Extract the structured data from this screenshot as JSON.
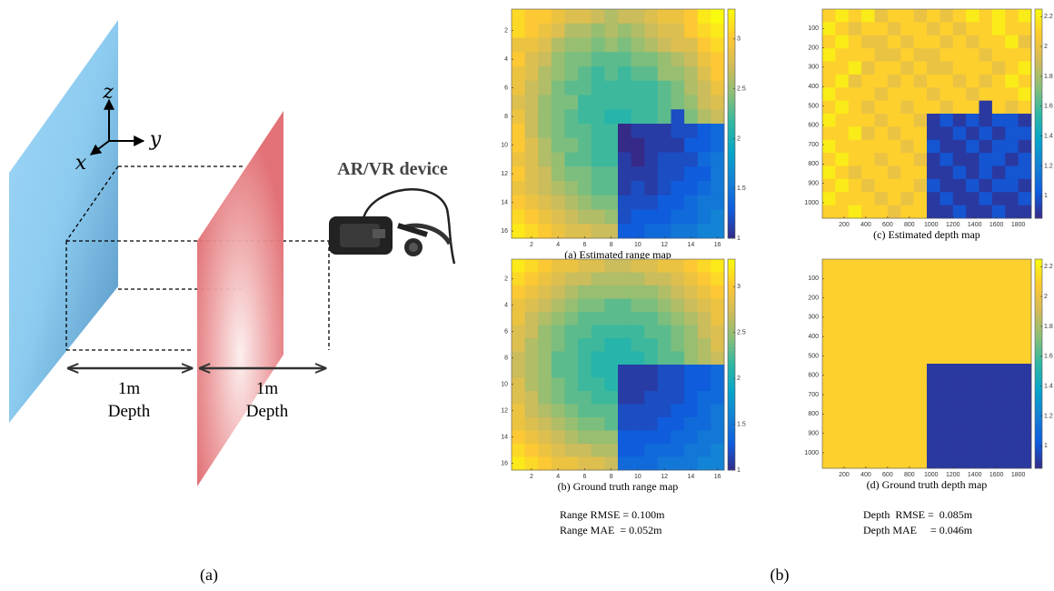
{
  "panel_a": {
    "axis_z": "z",
    "axis_y": "y",
    "axis_x": "x",
    "device": "AR/VR device",
    "gaps": [
      {
        "distance": "1m",
        "label": "Depth"
      },
      {
        "distance": "1m",
        "label": "Depth"
      }
    ],
    "label": "(a)"
  },
  "panel_b": {
    "label": "(b)",
    "metrics": [
      [
        "Range RMSE = 0.100m",
        "Range MAE  = 0.052m"
      ],
      [
        "Depth  RMSE =  0.085m",
        "Depth MAE     = 0.046m"
      ]
    ]
  },
  "chart_data": [
    {
      "type": "heatmap",
      "caption": "(a) Estimated range map",
      "xlim": [
        0.5,
        16.5
      ],
      "ylim": [
        0.5,
        16.5
      ],
      "y_reversed": true,
      "xticks": [
        2,
        4,
        6,
        8,
        10,
        12,
        14,
        16
      ],
      "yticks": [
        2,
        4,
        6,
        8,
        10,
        12,
        14,
        16
      ],
      "clim": [
        1,
        3.3
      ],
      "cticks": [
        1,
        1.5,
        2,
        2.5,
        3
      ],
      "z": [
        [
          3.1,
          3.0,
          3.0,
          2.9,
          2.8,
          2.8,
          2.7,
          2.6,
          2.7,
          2.7,
          2.8,
          2.9,
          2.9,
          3.0,
          3.2,
          3.3
        ],
        [
          3.1,
          3.0,
          2.9,
          2.8,
          2.6,
          2.6,
          2.5,
          2.6,
          2.5,
          2.6,
          2.7,
          2.8,
          2.8,
          3.0,
          3.1,
          3.2
        ],
        [
          2.9,
          2.9,
          2.8,
          2.6,
          2.5,
          2.5,
          2.4,
          2.5,
          2.4,
          2.5,
          2.6,
          2.7,
          2.8,
          2.8,
          3.0,
          3.1
        ],
        [
          3.0,
          2.8,
          2.7,
          2.5,
          2.4,
          2.4,
          2.3,
          2.3,
          2.3,
          2.4,
          2.4,
          2.5,
          2.6,
          2.7,
          2.9,
          3.0
        ],
        [
          2.9,
          2.8,
          2.6,
          2.5,
          2.4,
          2.3,
          2.2,
          2.3,
          2.2,
          2.3,
          2.3,
          2.5,
          2.5,
          2.6,
          2.8,
          3.0
        ],
        [
          2.9,
          2.7,
          2.6,
          2.4,
          2.3,
          2.3,
          2.2,
          2.2,
          2.2,
          2.2,
          2.2,
          2.3,
          2.4,
          2.6,
          2.7,
          2.9
        ],
        [
          2.8,
          2.7,
          2.5,
          2.4,
          2.4,
          2.2,
          2.2,
          2.2,
          2.2,
          2.2,
          2.2,
          2.3,
          2.4,
          2.5,
          2.7,
          2.8
        ],
        [
          2.9,
          2.7,
          2.5,
          2.4,
          2.3,
          2.2,
          2.2,
          2.1,
          2.1,
          2.2,
          2.2,
          2.3,
          1.2,
          2.4,
          2.6,
          2.7
        ],
        [
          3.0,
          2.7,
          2.5,
          2.4,
          2.3,
          2.3,
          2.2,
          2.2,
          1.0,
          1.1,
          1.1,
          1.1,
          1.2,
          1.2,
          1.3,
          1.4
        ],
        [
          3.0,
          2.8,
          2.6,
          2.4,
          2.4,
          2.3,
          2.2,
          2.2,
          1.0,
          1.0,
          1.1,
          1.1,
          1.1,
          1.3,
          1.3,
          1.4
        ],
        [
          2.9,
          2.8,
          2.6,
          2.5,
          2.3,
          2.3,
          2.2,
          2.2,
          1.1,
          1.0,
          1.1,
          1.2,
          1.2,
          1.2,
          1.4,
          1.5
        ],
        [
          3.0,
          2.8,
          2.7,
          2.5,
          2.4,
          2.4,
          2.3,
          2.3,
          1.1,
          1.1,
          1.1,
          1.2,
          1.2,
          1.3,
          1.3,
          1.5
        ],
        [
          2.9,
          2.8,
          2.7,
          2.6,
          2.5,
          2.4,
          2.3,
          2.3,
          1.1,
          1.2,
          1.1,
          1.2,
          1.3,
          1.3,
          1.4,
          1.5
        ],
        [
          3.0,
          2.9,
          2.8,
          2.7,
          2.6,
          2.5,
          2.4,
          2.4,
          1.2,
          1.2,
          1.2,
          1.3,
          1.3,
          1.4,
          1.5,
          1.5
        ],
        [
          3.1,
          3.0,
          2.9,
          2.8,
          2.7,
          2.6,
          2.6,
          2.5,
          1.2,
          1.3,
          1.3,
          1.3,
          1.4,
          1.4,
          1.5,
          1.6
        ],
        [
          3.2,
          3.1,
          3.0,
          2.9,
          2.8,
          2.8,
          2.7,
          2.7,
          1.3,
          1.3,
          1.4,
          1.4,
          1.5,
          1.5,
          1.6,
          1.6
        ]
      ]
    },
    {
      "type": "heatmap",
      "caption": "(b) Ground truth range map",
      "xlim": [
        0.5,
        16.5
      ],
      "ylim": [
        0.5,
        16.5
      ],
      "y_reversed": true,
      "xticks": [
        2,
        4,
        6,
        8,
        10,
        12,
        14,
        16
      ],
      "yticks": [
        2,
        4,
        6,
        8,
        10,
        12,
        14,
        16
      ],
      "clim": [
        1,
        3.3
      ],
      "cticks": [
        1,
        1.5,
        2,
        2.5,
        3
      ],
      "z": [
        [
          3.2,
          3.1,
          3.0,
          2.9,
          2.9,
          2.8,
          2.8,
          2.7,
          2.7,
          2.8,
          2.8,
          2.9,
          2.9,
          3.0,
          3.1,
          3.2
        ],
        [
          3.1,
          3.0,
          2.9,
          2.8,
          2.7,
          2.7,
          2.6,
          2.6,
          2.6,
          2.6,
          2.7,
          2.7,
          2.8,
          2.9,
          3.0,
          3.1
        ],
        [
          3.0,
          2.9,
          2.8,
          2.7,
          2.6,
          2.5,
          2.5,
          2.5,
          2.5,
          2.5,
          2.5,
          2.6,
          2.7,
          2.8,
          2.9,
          3.0
        ],
        [
          2.9,
          2.8,
          2.7,
          2.6,
          2.5,
          2.4,
          2.4,
          2.3,
          2.3,
          2.4,
          2.4,
          2.5,
          2.6,
          2.7,
          2.8,
          2.9
        ],
        [
          2.9,
          2.7,
          2.6,
          2.5,
          2.4,
          2.3,
          2.3,
          2.3,
          2.3,
          2.3,
          2.3,
          2.4,
          2.5,
          2.6,
          2.7,
          2.9
        ],
        [
          2.8,
          2.7,
          2.5,
          2.4,
          2.3,
          2.3,
          2.2,
          2.2,
          2.2,
          2.2,
          2.3,
          2.3,
          2.4,
          2.5,
          2.7,
          2.8
        ],
        [
          2.8,
          2.6,
          2.5,
          2.4,
          2.3,
          2.2,
          2.2,
          2.1,
          2.1,
          2.2,
          2.2,
          2.3,
          2.4,
          2.5,
          2.6,
          2.8
        ],
        [
          2.7,
          2.6,
          2.5,
          2.3,
          2.3,
          2.2,
          2.1,
          2.1,
          2.1,
          2.1,
          2.2,
          2.3,
          2.3,
          2.5,
          2.6,
          2.7
        ],
        [
          2.7,
          2.6,
          2.5,
          2.3,
          2.3,
          2.2,
          2.1,
          2.1,
          1.1,
          1.1,
          1.1,
          1.2,
          1.2,
          1.3,
          1.3,
          1.4
        ],
        [
          2.8,
          2.6,
          2.5,
          2.4,
          2.3,
          2.2,
          2.2,
          2.1,
          1.1,
          1.1,
          1.1,
          1.2,
          1.2,
          1.3,
          1.3,
          1.4
        ],
        [
          2.8,
          2.7,
          2.5,
          2.4,
          2.3,
          2.3,
          2.2,
          2.2,
          1.1,
          1.1,
          1.2,
          1.2,
          1.2,
          1.3,
          1.4,
          1.4
        ],
        [
          2.9,
          2.7,
          2.6,
          2.5,
          2.4,
          2.3,
          2.3,
          2.3,
          1.2,
          1.2,
          1.2,
          1.2,
          1.3,
          1.3,
          1.4,
          1.5
        ],
        [
          2.9,
          2.8,
          2.7,
          2.6,
          2.5,
          2.4,
          2.4,
          2.3,
          1.2,
          1.2,
          1.2,
          1.3,
          1.3,
          1.4,
          1.4,
          1.5
        ],
        [
          3.0,
          2.9,
          2.8,
          2.7,
          2.6,
          2.5,
          2.5,
          2.5,
          1.3,
          1.3,
          1.3,
          1.3,
          1.4,
          1.4,
          1.5,
          1.5
        ],
        [
          3.1,
          3.0,
          2.9,
          2.8,
          2.7,
          2.7,
          2.6,
          2.6,
          1.3,
          1.3,
          1.4,
          1.4,
          1.4,
          1.5,
          1.5,
          1.6
        ],
        [
          3.2,
          3.1,
          3.0,
          2.9,
          2.9,
          2.8,
          2.8,
          2.7,
          1.4,
          1.4,
          1.4,
          1.5,
          1.5,
          1.5,
          1.6,
          1.6
        ]
      ]
    },
    {
      "type": "heatmap",
      "caption": "(c) Estimated depth map",
      "xlim": [
        0,
        1920
      ],
      "ylim": [
        0,
        1080
      ],
      "y_reversed": true,
      "xticks": [
        200,
        400,
        600,
        800,
        1000,
        1200,
        1400,
        1600,
        1800
      ],
      "yticks": [
        100,
        200,
        300,
        400,
        500,
        600,
        700,
        800,
        900,
        1000
      ],
      "clim": [
        0.85,
        2.25
      ],
      "cticks": [
        1,
        1.2,
        1.4,
        1.6,
        1.8,
        2,
        2.2
      ],
      "z": [
        [
          2.1,
          2.2,
          2.1,
          2.2,
          2.0,
          2.1,
          2.1,
          2.0,
          2.1,
          2.0,
          2.1,
          2.2,
          2.1,
          2.2,
          2.1,
          2.2
        ],
        [
          2.2,
          2.1,
          2.0,
          2.1,
          2.1,
          2.0,
          2.1,
          2.1,
          2.0,
          2.1,
          2.0,
          2.1,
          2.1,
          2.2,
          2.1,
          2.1
        ],
        [
          2.1,
          2.2,
          2.1,
          2.0,
          2.0,
          2.1,
          2.0,
          2.1,
          2.1,
          2.0,
          2.1,
          2.0,
          2.1,
          2.1,
          2.2,
          2.0
        ],
        [
          2.2,
          2.1,
          2.1,
          2.1,
          2.0,
          2.0,
          2.1,
          2.0,
          2.0,
          2.1,
          2.1,
          2.1,
          2.0,
          2.1,
          2.1,
          2.1
        ],
        [
          2.1,
          2.1,
          2.2,
          2.0,
          2.1,
          2.1,
          2.0,
          2.1,
          2.0,
          2.0,
          2.1,
          2.1,
          2.1,
          2.0,
          2.1,
          2.2
        ],
        [
          2.1,
          2.2,
          2.0,
          2.1,
          2.1,
          2.0,
          2.1,
          2.0,
          2.1,
          2.1,
          2.0,
          2.1,
          2.0,
          2.1,
          2.2,
          2.1
        ],
        [
          2.2,
          2.1,
          2.1,
          2.1,
          2.0,
          2.1,
          2.1,
          2.1,
          2.0,
          2.1,
          2.1,
          2.0,
          2.1,
          2.1,
          2.1,
          2.2
        ],
        [
          2.1,
          2.2,
          2.1,
          2.0,
          2.1,
          2.1,
          2.0,
          2.1,
          2.1,
          2.0,
          2.1,
          2.1,
          0.9,
          2.1,
          2.0,
          2.1
        ],
        [
          2.2,
          2.1,
          2.1,
          2.1,
          2.0,
          2.1,
          2.1,
          2.0,
          0.9,
          1.0,
          0.9,
          1.0,
          0.9,
          1.0,
          1.0,
          0.9
        ],
        [
          2.1,
          2.1,
          2.2,
          2.0,
          2.1,
          2.0,
          2.1,
          2.1,
          0.9,
          0.9,
          1.0,
          0.9,
          1.0,
          0.9,
          1.0,
          1.0
        ],
        [
          2.2,
          2.1,
          2.1,
          2.1,
          2.1,
          2.1,
          2.0,
          2.1,
          1.0,
          0.9,
          0.9,
          1.0,
          0.9,
          1.0,
          1.0,
          0.9
        ],
        [
          2.1,
          2.2,
          2.1,
          2.1,
          2.0,
          2.1,
          2.1,
          2.0,
          0.9,
          1.0,
          0.9,
          0.9,
          1.0,
          1.0,
          0.9,
          1.0
        ],
        [
          2.2,
          2.1,
          2.0,
          2.1,
          2.1,
          2.0,
          2.1,
          2.1,
          0.9,
          0.9,
          1.0,
          0.9,
          1.0,
          0.9,
          1.0,
          1.0
        ],
        [
          2.1,
          2.2,
          2.1,
          2.0,
          2.1,
          2.1,
          2.1,
          2.0,
          1.0,
          0.9,
          0.9,
          1.0,
          0.9,
          1.0,
          1.0,
          0.9
        ],
        [
          2.2,
          2.1,
          2.1,
          2.1,
          2.0,
          2.1,
          2.0,
          2.1,
          0.9,
          1.0,
          0.9,
          0.9,
          1.0,
          0.9,
          0.9,
          1.0
        ],
        [
          2.1,
          2.1,
          2.2,
          2.1,
          2.1,
          2.0,
          2.1,
          2.1,
          0.9,
          0.9,
          1.0,
          0.9,
          0.9,
          1.0,
          0.9,
          0.9
        ]
      ]
    },
    {
      "type": "heatmap",
      "caption": "(d) Ground truth depth map",
      "xlim": [
        0,
        1920
      ],
      "ylim": [
        0,
        1080
      ],
      "y_reversed": true,
      "xticks": [
        200,
        400,
        600,
        800,
        1000,
        1200,
        1400,
        1600,
        1800
      ],
      "yticks": [
        100,
        200,
        300,
        400,
        500,
        600,
        700,
        800,
        900,
        1000
      ],
      "clim": [
        0.85,
        2.25
      ],
      "cticks": [
        1,
        1.2,
        1.4,
        1.6,
        1.8,
        2,
        2.2
      ],
      "z": [
        [
          2.1,
          2.1,
          2.1,
          2.1,
          2.1,
          2.1,
          2.1,
          2.1,
          2.1,
          2.1,
          2.1,
          2.1,
          2.1,
          2.1,
          2.1,
          2.1
        ],
        [
          2.1,
          2.1,
          2.1,
          2.1,
          2.1,
          2.1,
          2.1,
          2.1,
          2.1,
          2.1,
          2.1,
          2.1,
          2.1,
          2.1,
          2.1,
          2.1
        ],
        [
          2.1,
          2.1,
          2.1,
          2.1,
          2.1,
          2.1,
          2.1,
          2.1,
          2.1,
          2.1,
          2.1,
          2.1,
          2.1,
          2.1,
          2.1,
          2.1
        ],
        [
          2.1,
          2.1,
          2.1,
          2.1,
          2.1,
          2.1,
          2.1,
          2.1,
          2.1,
          2.1,
          2.1,
          2.1,
          2.1,
          2.1,
          2.1,
          2.1
        ],
        [
          2.1,
          2.1,
          2.1,
          2.1,
          2.1,
          2.1,
          2.1,
          2.1,
          2.1,
          2.1,
          2.1,
          2.1,
          2.1,
          2.1,
          2.1,
          2.1
        ],
        [
          2.1,
          2.1,
          2.1,
          2.1,
          2.1,
          2.1,
          2.1,
          2.1,
          2.1,
          2.1,
          2.1,
          2.1,
          2.1,
          2.1,
          2.1,
          2.1
        ],
        [
          2.1,
          2.1,
          2.1,
          2.1,
          2.1,
          2.1,
          2.1,
          2.1,
          2.1,
          2.1,
          2.1,
          2.1,
          2.1,
          2.1,
          2.1,
          2.1
        ],
        [
          2.1,
          2.1,
          2.1,
          2.1,
          2.1,
          2.1,
          2.1,
          2.1,
          2.1,
          2.1,
          2.1,
          2.1,
          2.1,
          2.1,
          2.1,
          2.1
        ],
        [
          2.1,
          2.1,
          2.1,
          2.1,
          2.1,
          2.1,
          2.1,
          2.1,
          0.9,
          0.9,
          0.9,
          0.9,
          0.9,
          0.9,
          0.9,
          0.9
        ],
        [
          2.1,
          2.1,
          2.1,
          2.1,
          2.1,
          2.1,
          2.1,
          2.1,
          0.9,
          0.9,
          0.9,
          0.9,
          0.9,
          0.9,
          0.9,
          0.9
        ],
        [
          2.1,
          2.1,
          2.1,
          2.1,
          2.1,
          2.1,
          2.1,
          2.1,
          0.9,
          0.9,
          0.9,
          0.9,
          0.9,
          0.9,
          0.9,
          0.9
        ],
        [
          2.1,
          2.1,
          2.1,
          2.1,
          2.1,
          2.1,
          2.1,
          2.1,
          0.9,
          0.9,
          0.9,
          0.9,
          0.9,
          0.9,
          0.9,
          0.9
        ],
        [
          2.1,
          2.1,
          2.1,
          2.1,
          2.1,
          2.1,
          2.1,
          2.1,
          0.9,
          0.9,
          0.9,
          0.9,
          0.9,
          0.9,
          0.9,
          0.9
        ],
        [
          2.1,
          2.1,
          2.1,
          2.1,
          2.1,
          2.1,
          2.1,
          2.1,
          0.9,
          0.9,
          0.9,
          0.9,
          0.9,
          0.9,
          0.9,
          0.9
        ],
        [
          2.1,
          2.1,
          2.1,
          2.1,
          2.1,
          2.1,
          2.1,
          2.1,
          0.9,
          0.9,
          0.9,
          0.9,
          0.9,
          0.9,
          0.9,
          0.9
        ],
        [
          2.1,
          2.1,
          2.1,
          2.1,
          2.1,
          2.1,
          2.1,
          2.1,
          0.9,
          0.9,
          0.9,
          0.9,
          0.9,
          0.9,
          0.9,
          0.9
        ]
      ]
    }
  ]
}
